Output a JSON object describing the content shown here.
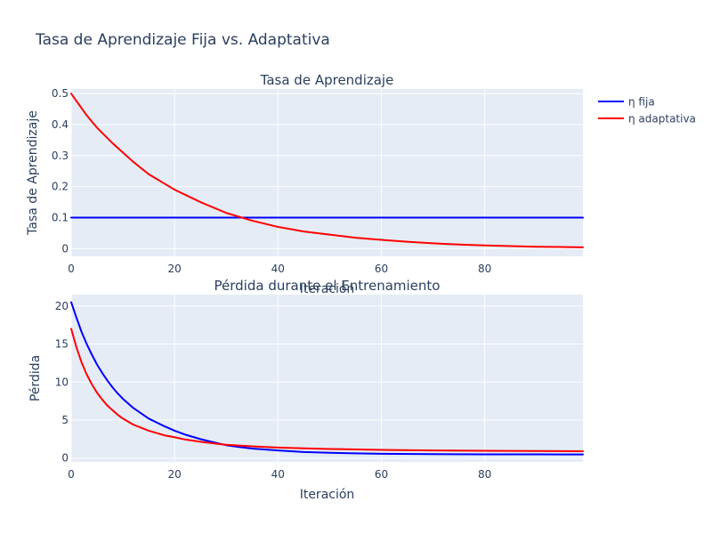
{
  "chart_data": {
    "type": "line",
    "title": "Tasa de Aprendizaje Fija vs. Adaptativa",
    "legend_position": "top-right",
    "colors": {
      "plot_background": "#e5ecf6",
      "grid": "#ffffff",
      "text": "#2a3f5f",
      "series_fixed": "#0000ff",
      "series_adaptive": "#ff0000"
    },
    "legend": [
      {
        "name": "η fija",
        "color": "#0000ff"
      },
      {
        "name": "η adaptativa",
        "color": "#ff0000"
      }
    ],
    "subplots": [
      {
        "title": "Tasa de Aprendizaje",
        "xlabel": "Iteración",
        "ylabel": "Tasa de Aprendizaje",
        "xlim": [
          0,
          99
        ],
        "ylim": [
          -0.025,
          0.515
        ],
        "xticks": [
          0,
          20,
          40,
          60,
          80
        ],
        "yticks": [
          0,
          0.1,
          0.2,
          0.3,
          0.4,
          0.5
        ],
        "ytick_labels": [
          "0",
          "0.1",
          "0.2",
          "0.3",
          "0.4",
          "0.5"
        ],
        "series": [
          {
            "name": "η fija",
            "color": "#0000ff",
            "x": [
              0,
              99
            ],
            "y": [
              0.1,
              0.1
            ]
          },
          {
            "name": "η adaptativa",
            "color": "#ff0000",
            "x": [
              0,
              3,
              5,
              8,
              10,
              12,
              15,
              18,
              20,
              25,
              30,
              35,
              40,
              45,
              50,
              55,
              60,
              65,
              70,
              75,
              80,
              85,
              90,
              95,
              99
            ],
            "y": [
              0.5,
              0.43,
              0.39,
              0.34,
              0.31,
              0.28,
              0.24,
              0.21,
              0.19,
              0.15,
              0.115,
              0.09,
              0.07,
              0.055,
              0.045,
              0.035,
              0.028,
              0.022,
              0.017,
              0.013,
              0.01,
              0.008,
              0.006,
              0.005,
              0.004
            ]
          }
        ]
      },
      {
        "title": "Pérdida durante el Entrenamiento",
        "xlabel": "Iteración",
        "ylabel": "Pérdida",
        "xlim": [
          0,
          99
        ],
        "ylim": [
          -0.5,
          21.5
        ],
        "xticks": [
          0,
          20,
          40,
          60,
          80
        ],
        "yticks": [
          0,
          5,
          10,
          15,
          20
        ],
        "ytick_labels": [
          "0",
          "5",
          "10",
          "15",
          "20"
        ],
        "series": [
          {
            "name": "η fija",
            "color": "#0000ff",
            "x": [
              0,
              1,
              2,
              3,
              4,
              5,
              6,
              7,
              8,
              9,
              10,
              12,
              15,
              18,
              20,
              22,
              25,
              28,
              30,
              32,
              35,
              40,
              45,
              50,
              55,
              60,
              70,
              80,
              90,
              99
            ],
            "y": [
              20.5,
              18.5,
              16.6,
              15.0,
              13.6,
              12.3,
              11.2,
              10.2,
              9.3,
              8.5,
              7.8,
              6.6,
              5.2,
              4.2,
              3.6,
              3.1,
              2.5,
              2.0,
              1.7,
              1.5,
              1.25,
              1.0,
              0.8,
              0.7,
              0.62,
              0.57,
              0.52,
              0.5,
              0.49,
              0.48
            ]
          },
          {
            "name": "η adaptativa",
            "color": "#ff0000",
            "x": [
              0,
              1,
              2,
              3,
              4,
              5,
              6,
              7,
              8,
              9,
              10,
              12,
              15,
              18,
              20,
              22,
              25,
              28,
              30,
              35,
              40,
              45,
              50,
              60,
              70,
              80,
              90,
              99
            ],
            "y": [
              17.0,
              14.6,
              12.6,
              11.0,
              9.7,
              8.6,
              7.7,
              6.9,
              6.3,
              5.7,
              5.2,
              4.4,
              3.6,
              3.0,
              2.75,
              2.45,
              2.15,
              1.9,
              1.75,
              1.55,
              1.38,
              1.28,
              1.2,
              1.08,
              1.0,
              0.96,
              0.93,
              0.91
            ]
          }
        ]
      }
    ]
  }
}
